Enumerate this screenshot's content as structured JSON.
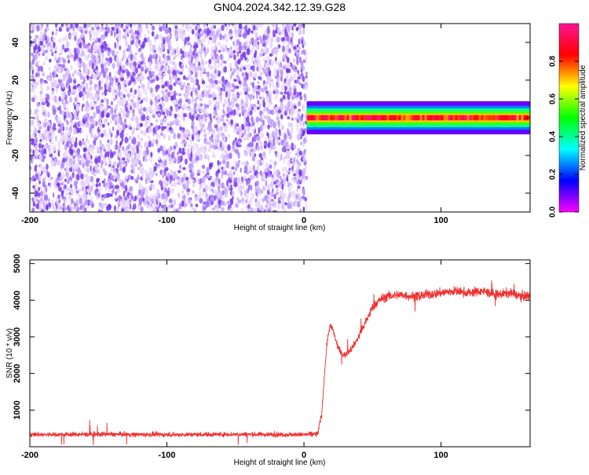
{
  "figure": {
    "title": "GN04.2024.342.12.39.G28"
  },
  "chart_data": [
    {
      "type": "heatmap",
      "xlabel": "Height of straight line (km)",
      "ylabel": "Frequency (Hz)",
      "xlim": [
        -200,
        165
      ],
      "ylim": [
        -50,
        50
      ],
      "xticks": [
        -200,
        -100,
        0,
        100
      ],
      "yticks": [
        -40,
        -20,
        0,
        20,
        40
      ],
      "signal_band": {
        "x_start": 2,
        "x_end": 165,
        "freq_center": 0,
        "freq_halfwidth": 4,
        "peak_amplitude": 1.0
      },
      "noise_region": {
        "x_start": -200,
        "x_end": 2,
        "amplitude": 0.1
      },
      "colorbar": {
        "label": "Normalized spectral amplitude",
        "range": [
          0,
          1
        ],
        "ticks": [
          0.0,
          0.2,
          0.4,
          0.6,
          0.8
        ],
        "colormap": [
          "#ff00ff",
          "#0000ff",
          "#00ffff",
          "#00ff00",
          "#ffff00",
          "#ff0000",
          "#ff1493"
        ]
      },
      "grid": false
    },
    {
      "type": "line",
      "xlabel": "Height of straight line (km)",
      "ylabel": "SNR (10 * v/v)",
      "xlim": [
        -200,
        165
      ],
      "ylim": [
        0,
        5100
      ],
      "xticks": [
        -200,
        -100,
        0,
        100
      ],
      "yticks": [
        1000,
        2000,
        3000,
        4000,
        5000
      ],
      "color": "#f03030",
      "series": [
        {
          "x": [
            -200,
            -150,
            -100,
            -50,
            0,
            10,
            13,
            15,
            17,
            19,
            21,
            24,
            27,
            30,
            35,
            40,
            45,
            50,
            55,
            60,
            70,
            80,
            90,
            100,
            110,
            120,
            130,
            140,
            150,
            160,
            165
          ],
          "y": [
            330,
            340,
            330,
            340,
            330,
            350,
            900,
            2000,
            2900,
            3300,
            3200,
            2800,
            2550,
            2500,
            2700,
            3000,
            3400,
            3800,
            4000,
            4100,
            4150,
            4100,
            4150,
            4200,
            4250,
            4200,
            4250,
            4150,
            4200,
            4100,
            4150
          ]
        }
      ],
      "grid": false
    }
  ]
}
